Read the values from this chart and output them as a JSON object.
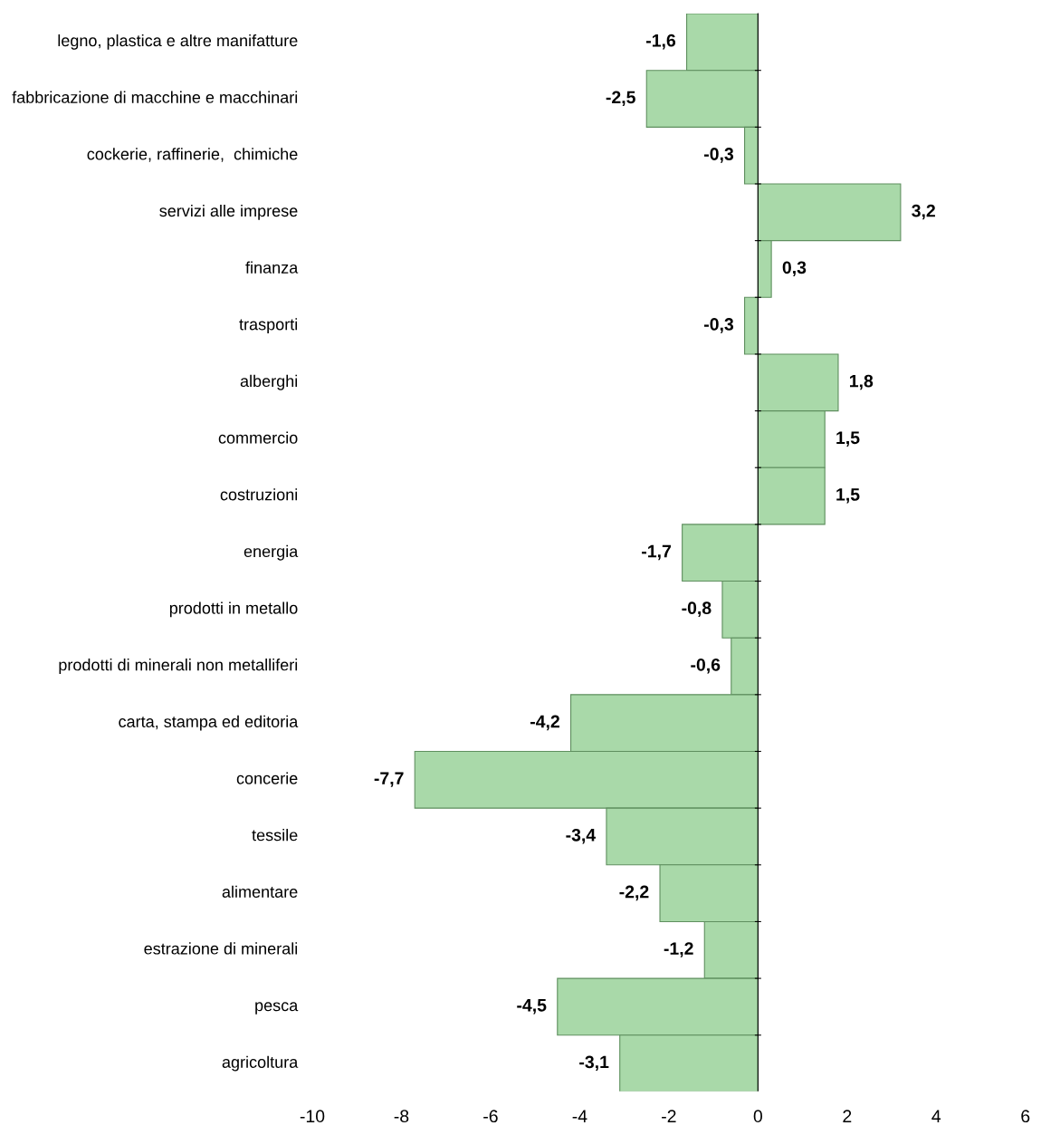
{
  "chart_data": {
    "type": "bar",
    "orientation": "horizontal",
    "categories": [
      "legno, plastica e altre manifatture",
      "fabbricazione di macchine e macchinari",
      "cockerie, raffinerie,  chimiche",
      "servizi alle imprese",
      "finanza",
      "trasporti",
      "alberghi",
      "commercio",
      "costruzioni",
      "energia",
      "prodotti in metallo",
      "prodotti di minerali non metalliferi",
      "carta, stampa ed editoria",
      "concerie",
      "tessile",
      "alimentare",
      "estrazione di minerali",
      "pesca",
      "agricoltura"
    ],
    "values": [
      -1.6,
      -2.5,
      -0.3,
      3.2,
      0.3,
      -0.3,
      1.8,
      1.5,
      1.5,
      -1.7,
      -0.8,
      -0.6,
      -4.2,
      -7.7,
      -3.4,
      -2.2,
      -1.2,
      -4.5,
      -3.1
    ],
    "value_labels": [
      "-1,6",
      "-2,5",
      "-0,3",
      "3,2",
      "0,3",
      "-0,3",
      "1,8",
      "1,5",
      "1,5",
      "-1,7",
      "-0,8",
      "-0,6",
      "-4,2",
      "-7,7",
      "-3,4",
      "-2,2",
      "-1,2",
      "-4,5",
      "-3,1"
    ],
    "color": "#a9d9a9",
    "xlim": [
      -10,
      6
    ],
    "xticks": [
      -10,
      -8,
      -6,
      -4,
      -2,
      0,
      2,
      4,
      6
    ],
    "legend": false
  }
}
